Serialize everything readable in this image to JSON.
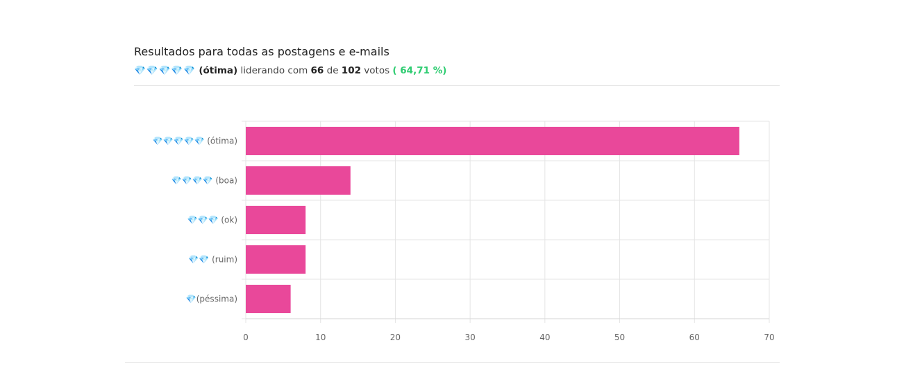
{
  "header": {
    "title": "Resultados para todas as postagens e e-mails",
    "leader_icons": "💎💎💎💎💎",
    "leader_label": "(ótima)",
    "text_leading": "liderando com",
    "leader_votes": "66",
    "text_of": "de",
    "total_votes": "102",
    "text_votes": "votos",
    "leader_percent": "( 64,71 %)"
  },
  "colors": {
    "bar": "#e9489a",
    "grid": "#e4e4e4",
    "percent": "#2ecc71"
  },
  "chart_data": {
    "type": "bar",
    "orientation": "horizontal",
    "categories": [
      "💎💎💎💎💎 (ótima)",
      "💎💎💎💎 (boa)",
      "💎💎💎 (ok)",
      "💎💎 (ruim)",
      "💎(péssima)"
    ],
    "values": [
      66,
      14,
      8,
      8,
      6
    ],
    "xlim": [
      0,
      70
    ],
    "xticks": [
      "0",
      "10",
      "20",
      "30",
      "40",
      "50",
      "60",
      "70"
    ],
    "grid": true,
    "legend": "none",
    "title": "",
    "xlabel": "",
    "ylabel": ""
  }
}
